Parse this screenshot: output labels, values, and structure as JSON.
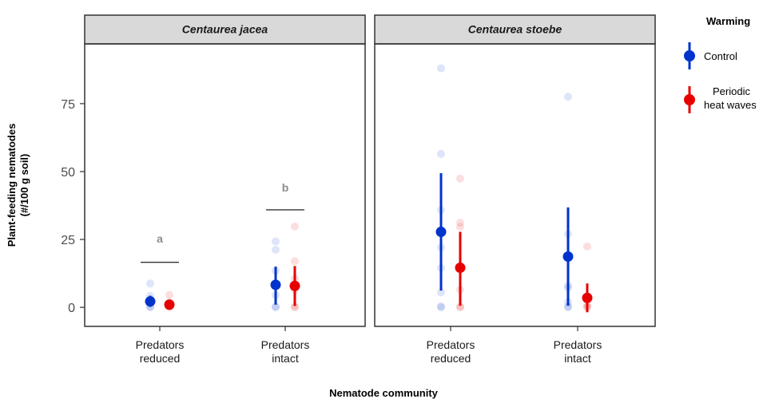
{
  "chart_data": {
    "type": "scatter",
    "ylabel": "Plant-feeding nematodes\n(#/100 g soil)",
    "xlabel": "Nematode community",
    "ylim": [
      -7,
      97
    ],
    "yticks": [
      0,
      25,
      50,
      75
    ],
    "categories": [
      "Predators\nreduced",
      "Predators\nintact"
    ],
    "legend": {
      "title": "Warming",
      "position": "right",
      "entries": [
        {
          "label": "Control",
          "color": "#0033cc"
        },
        {
          "label": "Periodic\nheat waves",
          "color": "#e60000"
        }
      ]
    },
    "facets": [
      {
        "title": "Centaurea jacea",
        "groups": [
          {
            "category": 0,
            "series": "Control",
            "mean": 2.2,
            "low": 0.2,
            "high": 4.3,
            "points": [
              0,
              0.3,
              1.5,
              2.5,
              4.2,
              8.8
            ]
          },
          {
            "category": 0,
            "series": "Periodic heat waves",
            "mean": 1.0,
            "low": 0.3,
            "high": 1.8,
            "points": [
              0,
              0.5,
              1.2,
              2.0,
              4.6
            ]
          },
          {
            "category": 1,
            "series": "Control",
            "mean": 8.3,
            "low": 1.0,
            "high": 15.0,
            "points": [
              0,
              0.3,
              4.5,
              8.0,
              13.5,
              21.2,
              24.3
            ]
          },
          {
            "category": 1,
            "series": "Periodic heat waves",
            "mean": 7.9,
            "low": 0.5,
            "high": 15.2,
            "points": [
              0,
              0.3,
              6.5,
              10.5,
              17.0,
              29.8
            ]
          }
        ],
        "annotations": [
          {
            "category": 0,
            "letter": "a",
            "line_y": 16.6,
            "letter_y": 23.8
          },
          {
            "category": 1,
            "letter": "b",
            "line_y": 35.9,
            "letter_y": 42.7
          }
        ]
      },
      {
        "title": "Centaurea stoebe",
        "groups": [
          {
            "category": 0,
            "series": "Control",
            "mean": 27.8,
            "low": 6.2,
            "high": 49.4,
            "points": [
              0,
              0.4,
              5.5,
              14.5,
              22.0,
              35.8,
              56.5,
              88.0
            ]
          },
          {
            "category": 0,
            "series": "Periodic heat waves",
            "mean": 14.6,
            "low": 0.6,
            "high": 27.8,
            "points": [
              0,
              0.3,
              6.5,
              29.6,
              31.2,
              47.4
            ]
          },
          {
            "category": 1,
            "series": "Control",
            "mean": 18.7,
            "low": 0.6,
            "high": 36.8,
            "points": [
              0,
              0.4,
              2.0,
              7.2,
              8.0,
              27.0,
              77.5
            ]
          },
          {
            "category": 1,
            "series": "Periodic heat waves",
            "mean": 3.5,
            "low": -1.8,
            "high": 8.8,
            "points": [
              0,
              0.3,
              1.0,
              22.4
            ]
          }
        ],
        "annotations": []
      }
    ]
  }
}
